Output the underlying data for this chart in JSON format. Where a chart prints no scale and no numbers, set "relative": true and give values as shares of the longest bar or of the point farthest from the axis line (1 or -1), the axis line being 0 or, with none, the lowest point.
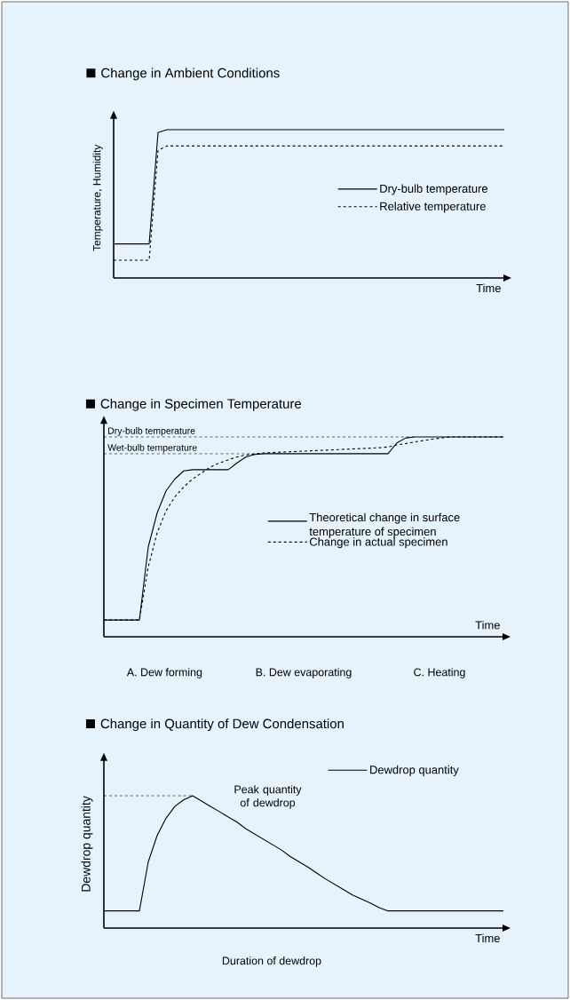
{
  "chart_data": [
    {
      "type": "line",
      "title": "Change in Ambient Conditions",
      "xlabel": "Time",
      "ylabel": "Temperature, Humidity",
      "relative": true,
      "legend": "right",
      "categories": [
        null,
        null,
        null,
        null,
        null,
        null,
        null,
        null,
        null,
        null,
        null,
        null,
        null,
        null,
        null,
        null,
        null,
        null,
        null,
        null,
        null,
        null,
        null,
        null,
        null,
        null,
        null,
        null,
        null,
        null,
        null,
        null,
        null,
        null,
        null,
        null,
        null,
        null,
        null,
        null,
        null,
        null,
        null,
        null,
        null
      ],
      "series": [
        {
          "name": "Dry-bulb temperature",
          "color": "#000000",
          "line_style": "solid",
          "values": [
            0.23,
            0.23,
            0.23,
            0.23,
            0.23,
            0.98,
            1.0,
            1.0,
            1.0,
            1.0,
            1.0,
            1.0,
            1.0,
            1.0,
            1.0,
            1.0,
            1.0,
            1.0,
            1.0,
            1.0,
            1.0,
            1.0,
            1.0,
            1.0,
            1.0,
            1.0,
            1.0,
            1.0,
            1.0,
            1.0,
            1.0,
            1.0,
            1.0,
            1.0,
            1.0,
            1.0,
            1.0,
            1.0,
            1.0,
            1.0,
            1.0,
            1.0,
            1.0,
            1.0,
            1.0
          ]
        },
        {
          "name": "Relative temperature",
          "color": "#000000",
          "line_style": "dashed",
          "values": [
            0.12,
            0.12,
            0.12,
            0.12,
            0.12,
            0.86,
            0.89,
            0.89,
            0.89,
            0.89,
            0.89,
            0.89,
            0.89,
            0.89,
            0.89,
            0.89,
            0.89,
            0.89,
            0.89,
            0.89,
            0.89,
            0.89,
            0.89,
            0.89,
            0.89,
            0.89,
            0.89,
            0.89,
            0.89,
            0.89,
            0.89,
            0.89,
            0.89,
            0.89,
            0.89,
            0.89,
            0.89,
            0.89,
            0.89,
            0.89,
            0.89,
            0.89,
            0.89,
            0.89,
            0.89
          ]
        }
      ]
    },
    {
      "type": "line",
      "title": "Change in Specimen Temperature",
      "xlabel": "Time",
      "relative": true,
      "legend": "right",
      "categories": [
        null,
        null,
        null,
        null,
        null,
        null,
        null,
        null,
        null,
        null,
        null,
        null,
        null,
        null,
        null,
        null,
        null,
        null,
        null,
        null,
        null,
        null,
        null,
        null,
        null,
        null,
        null,
        null,
        null,
        null,
        null,
        null,
        null,
        null,
        null,
        null,
        null,
        null,
        null,
        null,
        null,
        null,
        null,
        null,
        null,
        null
      ],
      "series": [
        {
          "name": "Theoretical change in surface temperature of specimen",
          "color": "#000000",
          "line_style": "solid",
          "values": [
            0.084,
            0.084,
            0.084,
            0.084,
            0.084,
            0.45,
            0.62,
            0.73,
            0.79,
            0.83,
            0.836,
            0.836,
            0.836,
            0.836,
            0.836,
            0.87,
            0.9,
            0.912,
            0.916,
            0.916,
            0.916,
            0.916,
            0.916,
            0.916,
            0.916,
            0.916,
            0.916,
            0.916,
            0.916,
            0.916,
            0.916,
            0.916,
            0.916,
            0.97,
            0.995,
            1.0,
            1.0,
            1.0,
            1.0,
            1.0,
            1.0,
            1.0,
            1.0,
            1.0,
            1.0,
            1.0
          ]
        },
        {
          "name": "Change in actual specimen",
          "color": "#000000",
          "line_style": "dashed",
          "values": [
            0.084,
            0.084,
            0.084,
            0.084,
            0.084,
            0.35,
            0.52,
            0.63,
            0.7,
            0.75,
            0.79,
            0.82,
            0.85,
            0.87,
            0.885,
            0.9,
            0.91,
            0.915,
            0.92,
            0.922,
            0.924,
            0.926,
            0.928,
            0.93,
            0.932,
            0.934,
            0.936,
            0.938,
            0.94,
            0.942,
            0.944,
            0.946,
            0.95,
            0.96,
            0.967,
            0.975,
            0.982,
            0.989,
            0.995,
            1.0,
            1.0,
            1.0,
            1.0,
            1.0,
            1.0,
            1.0
          ]
        }
      ],
      "ref_lines": [
        {
          "axis": "y",
          "value": 1.0,
          "label": "Dry-bulb temperature",
          "line_style": "dashed"
        },
        {
          "axis": "y",
          "value": 0.916,
          "label": "Wet-bulb temperature",
          "line_style": "dashed"
        }
      ],
      "annotations": [
        "A. Dew forming",
        "B. Dew evaporating",
        "C. Heating"
      ]
    },
    {
      "type": "line",
      "title": "Change in Quantity of Dew Condensation",
      "xlabel": "Time",
      "ylabel": "Dewdrop quantity",
      "relative": true,
      "legend": "top right",
      "categories": [
        null,
        null,
        null,
        null,
        null,
        null,
        null,
        null,
        null,
        null,
        null,
        null,
        null,
        null,
        null,
        null,
        null,
        null,
        null,
        null,
        null,
        null,
        null,
        null,
        null,
        null,
        null,
        null,
        null,
        null,
        null,
        null,
        null,
        null,
        null,
        null,
        null,
        null,
        null,
        null,
        null,
        null,
        null,
        null,
        null,
        null
      ],
      "series": [
        {
          "name": "Dewdrop quantity",
          "color": "#000000",
          "line_style": "solid",
          "values": [
            0.13,
            0.13,
            0.13,
            0.13,
            0.13,
            0.5,
            0.7,
            0.83,
            0.92,
            0.97,
            1.0,
            0.96,
            0.92,
            0.88,
            0.84,
            0.8,
            0.75,
            0.71,
            0.67,
            0.63,
            0.59,
            0.54,
            0.5,
            0.46,
            0.415,
            0.37,
            0.33,
            0.29,
            0.25,
            0.22,
            0.19,
            0.155,
            0.13,
            0.13,
            0.13,
            0.13,
            0.13,
            0.13,
            0.13,
            0.13,
            0.13,
            0.13,
            0.13,
            0.13,
            0.13,
            0.13
          ]
        }
      ],
      "ref_lines": [
        {
          "axis": "y",
          "value": 1.0,
          "line_style": "dashed"
        }
      ],
      "annotations": [
        "Peak quantity of dewdrop",
        "Duration of dewdrop"
      ]
    }
  ]
}
